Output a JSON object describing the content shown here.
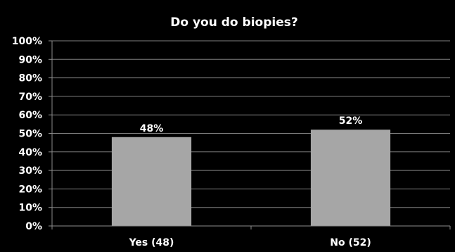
{
  "chart_data": {
    "type": "bar",
    "title": "Do you do biopies?",
    "categories": [
      "Yes (48)",
      "No (52)"
    ],
    "values": [
      48,
      52
    ],
    "data_labels": [
      "48%",
      "52%"
    ],
    "ylim": [
      0,
      100
    ],
    "y_ticks": [
      0,
      10,
      20,
      30,
      40,
      50,
      60,
      70,
      80,
      90,
      100
    ],
    "y_tick_labels": [
      "0%",
      "10%",
      "20%",
      "30%",
      "40%",
      "50%",
      "60%",
      "70%",
      "80%",
      "90%",
      "100%"
    ],
    "grid": true,
    "legend": "none",
    "xlabel": "",
    "ylabel": "",
    "colors": {
      "background": "#000000",
      "bar": "#a6a6a6",
      "gridline": "#7f7f7f",
      "axis": "#8c8c8c",
      "text": "#ffffff"
    }
  }
}
